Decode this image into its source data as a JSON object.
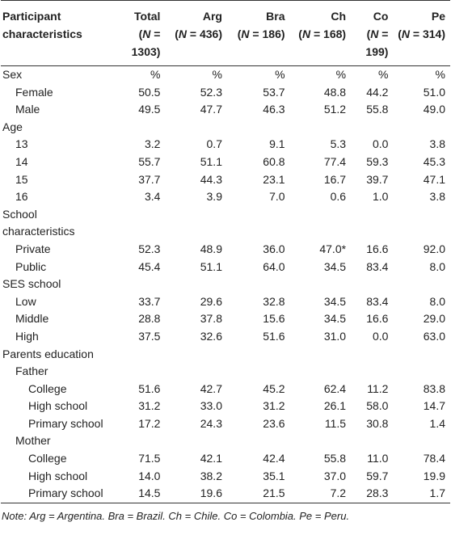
{
  "table": {
    "header": {
      "label": "Participant characteristics",
      "columns": [
        {
          "name": "Total",
          "count": [
            "(",
            "N",
            " = 1303)"
          ]
        },
        {
          "name": "Arg",
          "count": [
            "(",
            "N",
            " = 436)"
          ]
        },
        {
          "name": "Bra",
          "count": [
            "(",
            "N",
            " = 186)"
          ]
        },
        {
          "name": "Ch",
          "count": [
            "(",
            "N",
            " = 168)"
          ]
        },
        {
          "name": "Co",
          "count": [
            "(",
            "N",
            " = 199)"
          ]
        },
        {
          "name": "Pe",
          "count": [
            "(",
            "N",
            " = 314)"
          ]
        }
      ]
    },
    "rows": [
      {
        "label": "Sex",
        "indent": 0,
        "values": [
          "%",
          "%",
          "%",
          "%",
          "%",
          "%"
        ]
      },
      {
        "label": "Female",
        "indent": 1,
        "values": [
          "50.5",
          "52.3",
          "53.7",
          "48.8",
          "44.2",
          "51.0"
        ]
      },
      {
        "label": "Male",
        "indent": 1,
        "values": [
          "49.5",
          "47.7",
          "46.3",
          "51.2",
          "55.8",
          "49.0"
        ]
      },
      {
        "label": "Age",
        "indent": 0,
        "values": []
      },
      {
        "label": "13",
        "indent": 1,
        "values": [
          "3.2",
          "0.7",
          "9.1",
          "5.3",
          "0.0",
          "3.8"
        ]
      },
      {
        "label": "14",
        "indent": 1,
        "values": [
          "55.7",
          "51.1",
          "60.8",
          "77.4",
          "59.3",
          "45.3"
        ]
      },
      {
        "label": "15",
        "indent": 1,
        "values": [
          "37.7",
          "44.3",
          "23.1",
          "16.7",
          "39.7",
          "47.1"
        ]
      },
      {
        "label": "16",
        "indent": 1,
        "values": [
          "3.4",
          "3.9",
          "7.0",
          "0.6",
          "1.0",
          "3.8"
        ]
      },
      {
        "label": "School characteristics",
        "indent": 0,
        "values": []
      },
      {
        "label": "Private",
        "indent": 1,
        "values": [
          "52.3",
          "48.9",
          "36.0",
          "47.0*",
          "16.6",
          "92.0"
        ]
      },
      {
        "label": "Public",
        "indent": 1,
        "values": [
          "45.4",
          "51.1",
          "64.0",
          "34.5",
          "83.4",
          "8.0"
        ]
      },
      {
        "label": "SES school",
        "indent": 0,
        "values": []
      },
      {
        "label": "Low",
        "indent": 1,
        "values": [
          "33.7",
          "29.6",
          "32.8",
          "34.5",
          "83.4",
          "8.0"
        ]
      },
      {
        "label": "Middle",
        "indent": 1,
        "values": [
          "28.8",
          "37.8",
          "15.6",
          "34.5",
          "16.6",
          "29.0"
        ]
      },
      {
        "label": "High",
        "indent": 1,
        "values": [
          "37.5",
          "32.6",
          "51.6",
          "31.0",
          "0.0",
          "63.0"
        ]
      },
      {
        "label": "Parents education",
        "indent": 0,
        "values": []
      },
      {
        "label": "Father",
        "indent": 1,
        "values": []
      },
      {
        "label": "College",
        "indent": 2,
        "values": [
          "51.6",
          "42.7",
          "45.2",
          "62.4",
          "11.2",
          "83.8"
        ]
      },
      {
        "label": "High school",
        "indent": 2,
        "values": [
          "31.2",
          "33.0",
          "31.2",
          "26.1",
          "58.0",
          "14.7"
        ]
      },
      {
        "label": "Primary school",
        "indent": 2,
        "values": [
          "17.2",
          "24.3",
          "23.6",
          "11.5",
          "30.8",
          "1.4"
        ]
      },
      {
        "label": "Mother",
        "indent": 1,
        "values": []
      },
      {
        "label": "College",
        "indent": 2,
        "values": [
          "71.5",
          "42.1",
          "42.4",
          "55.8",
          "11.0",
          "78.4"
        ]
      },
      {
        "label": "High school",
        "indent": 2,
        "values": [
          "14.0",
          "38.2",
          "35.1",
          "37.0",
          "59.7",
          "19.9"
        ]
      },
      {
        "label": "Primary school",
        "indent": 2,
        "values": [
          "14.5",
          "19.6",
          "21.5",
          "7.2",
          "28.3",
          "1.7"
        ]
      }
    ],
    "note": "Note: Arg = Argentina. Bra = Brazil. Ch = Chile. Co = Colombia. Pe = Peru."
  }
}
